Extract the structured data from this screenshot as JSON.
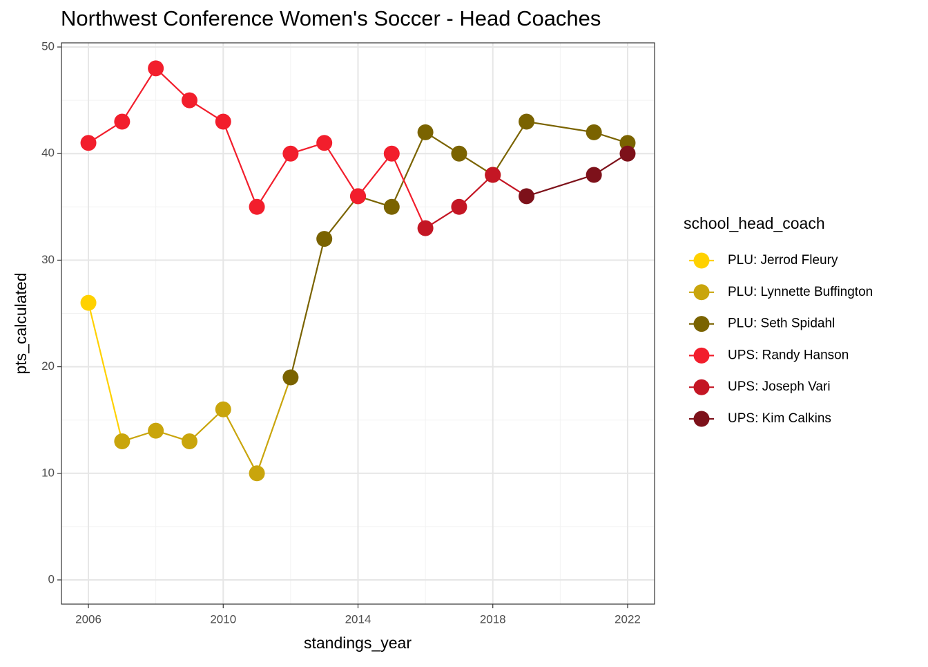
{
  "chart_data": {
    "type": "line",
    "title": "Northwest Conference Women's Soccer - Head Coaches",
    "x_label": "standings_year",
    "y_label": "pts_calculated",
    "legend_title": "school_head_coach",
    "legend_position": "right",
    "xlim": [
      2005.2,
      2022.8
    ],
    "xticks": [
      2006,
      2010,
      2014,
      2018,
      2022
    ],
    "x_minor_ticks": [
      2008,
      2012,
      2016,
      2020
    ],
    "ylim": [
      -2.27,
      50.39
    ],
    "yticks": [
      0,
      10,
      20,
      30,
      40,
      50
    ],
    "y_minor_ticks": [
      5,
      15,
      25,
      35,
      45
    ],
    "grid": true,
    "series": [
      {
        "name": "PLU: Jerrod Fleury",
        "color": "#FFD100",
        "x": [
          2006
        ],
        "values": [
          26
        ]
      },
      {
        "name": "PLU: Lynnette Buffington",
        "color": "#C9A50C",
        "x": [
          2007,
          2008,
          2009,
          2010,
          2011
        ],
        "values": [
          13,
          14,
          13,
          16,
          10
        ]
      },
      {
        "name": "PLU: Seth Spidahl",
        "color": "#7A6300",
        "x": [
          2012,
          2013,
          2014,
          2015,
          2016,
          2017,
          2018,
          2019,
          2021,
          2022
        ],
        "values": [
          19,
          32,
          36,
          35,
          42,
          40,
          38,
          43,
          42,
          41
        ]
      },
      {
        "name": "UPS: Randy Hanson",
        "color": "#F21E2C",
        "x": [
          2006,
          2007,
          2008,
          2009,
          2010,
          2011,
          2012,
          2013,
          2014,
          2015
        ],
        "values": [
          41,
          43,
          48,
          45,
          43,
          35,
          40,
          41,
          36,
          40
        ]
      },
      {
        "name": "UPS: Joseph Vari",
        "color": "#C41624",
        "x": [
          2016,
          2017,
          2018
        ],
        "values": [
          33,
          35,
          38
        ]
      },
      {
        "name": "UPS: Kim Calkins",
        "color": "#7D111A",
        "x": [
          2019,
          2021,
          2022
        ],
        "values": [
          36,
          38,
          40
        ]
      }
    ]
  }
}
